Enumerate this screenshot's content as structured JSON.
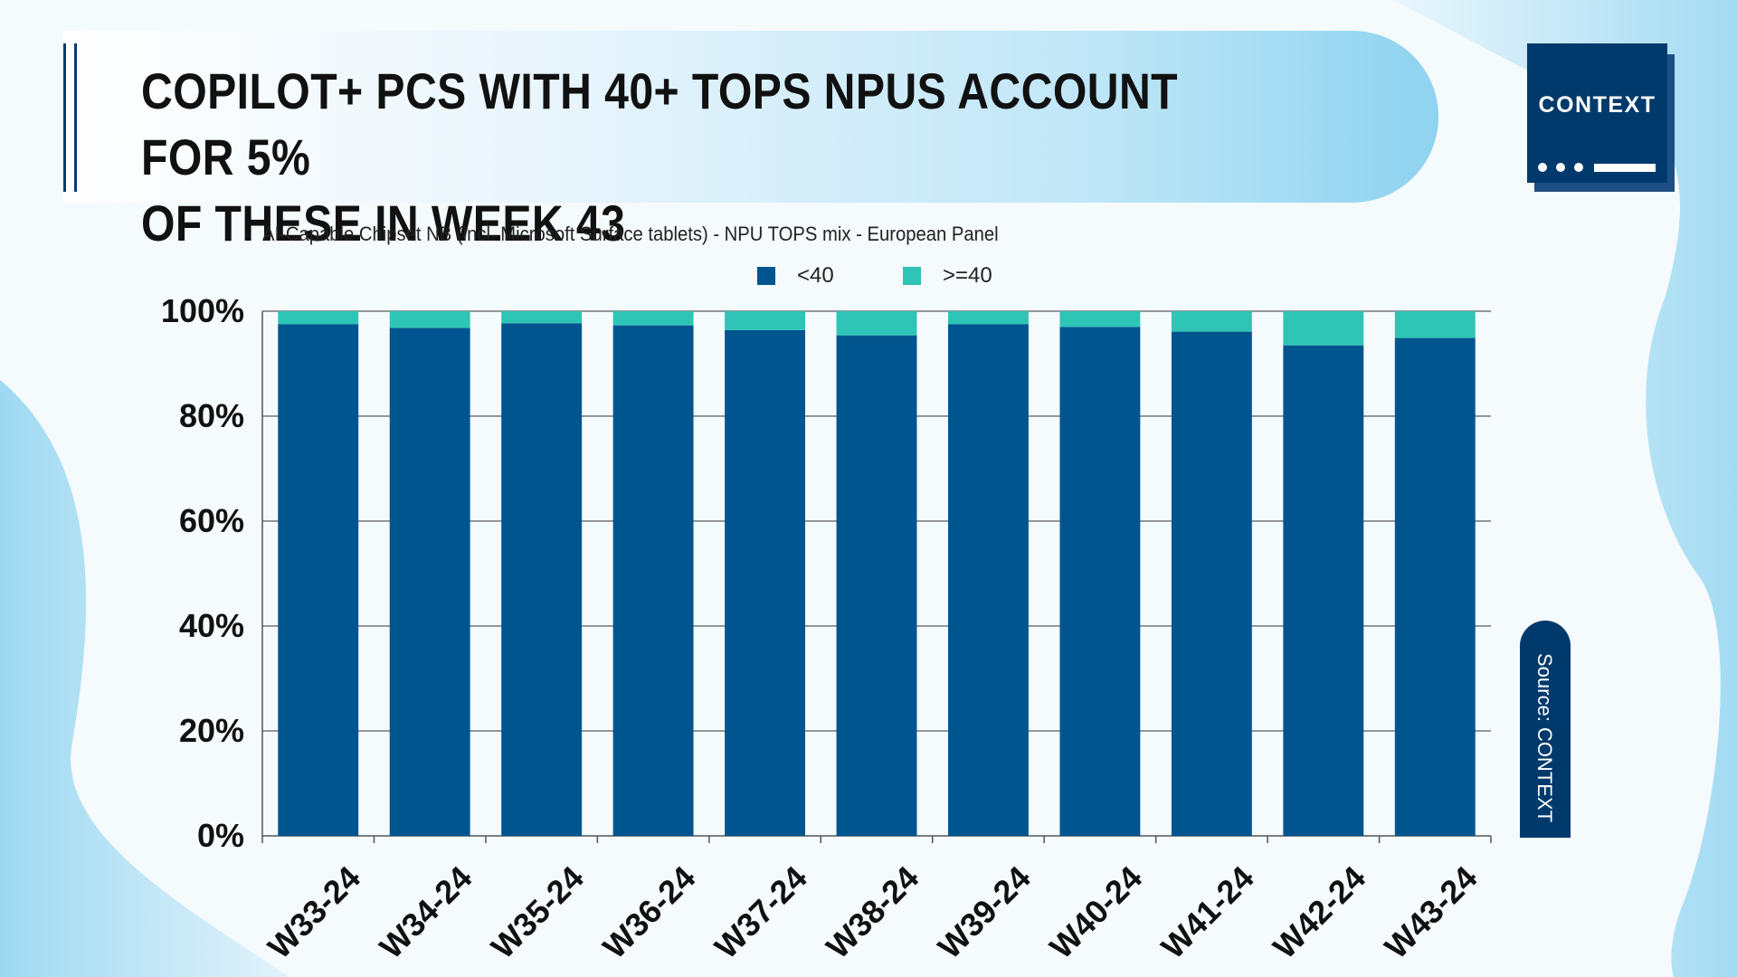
{
  "header": {
    "title_line1": "COPILOT+ PCS WITH 40+ TOPS NPUS ACCOUNT FOR 5%",
    "title_line2": "OF THESE IN WEEK 43"
  },
  "logo": {
    "text": "CONTEXT"
  },
  "source": {
    "label": "Source: CONTEXT"
  },
  "colors": {
    "accent": "#003a6c",
    "series_under_40": "#00558f",
    "series_40_plus": "#2ec4b6",
    "title_band": "#8ed3f0"
  },
  "chart_data": {
    "type": "bar",
    "stacked": true,
    "title": "AI-Capable Chipset NB (incl. Microsoft Surface tablets) - NPU TOPS mix - European Panel",
    "xlabel": "",
    "ylabel": "",
    "ylim": [
      0,
      100
    ],
    "y_ticks": [
      "0%",
      "20%",
      "40%",
      "60%",
      "80%",
      "100%"
    ],
    "legend_position": "top-center",
    "grid": true,
    "categories": [
      "W33-24",
      "W34-24",
      "W35-24",
      "W36-24",
      "W37-24",
      "W38-24",
      "W39-24",
      "W40-24",
      "W41-24",
      "W42-24",
      "W43-24"
    ],
    "series": [
      {
        "name": "<40",
        "color": "#00558f",
        "values": [
          97.5,
          96.8,
          97.7,
          97.3,
          96.4,
          95.4,
          97.5,
          97.0,
          96.1,
          93.5,
          94.9
        ]
      },
      {
        "name": ">=40",
        "color": "#2ec4b6",
        "values": [
          2.5,
          3.2,
          2.3,
          2.7,
          3.6,
          4.6,
          2.5,
          3.0,
          3.9,
          6.5,
          5.1
        ]
      }
    ]
  }
}
